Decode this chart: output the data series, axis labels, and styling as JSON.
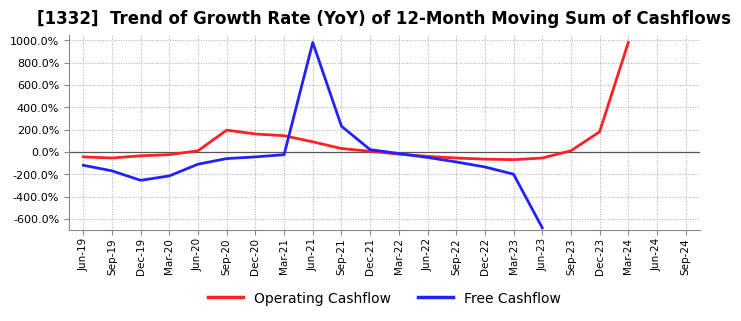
{
  "title": "[1332]  Trend of Growth Rate (YoY) of 12-Month Moving Sum of Cashflows",
  "title_fontsize": 12,
  "ylim": [
    -700,
    1050
  ],
  "yticks": [
    -600,
    -400,
    -200,
    0,
    200,
    400,
    600,
    800,
    1000
  ],
  "background_color": "#ffffff",
  "plot_bg_color": "#ffffff",
  "grid_color": "#aaaaaa",
  "operating_color": "#ff2222",
  "free_color": "#2222ff",
  "legend_labels": [
    "Operating Cashflow",
    "Free Cashflow"
  ],
  "x_labels": [
    "Jun-19",
    "Sep-19",
    "Dec-19",
    "Mar-20",
    "Jun-20",
    "Sep-20",
    "Dec-20",
    "Mar-21",
    "Jun-21",
    "Sep-21",
    "Dec-21",
    "Mar-22",
    "Jun-22",
    "Sep-22",
    "Dec-22",
    "Mar-23",
    "Jun-23",
    "Sep-23",
    "Dec-23",
    "Mar-24",
    "Jun-24",
    "Sep-24"
  ],
  "operating": [
    -45,
    -55,
    -35,
    -25,
    10,
    195,
    160,
    145,
    90,
    30,
    5,
    -20,
    -40,
    -55,
    -65,
    -70,
    -55,
    10,
    180,
    980,
    null,
    null
  ],
  "free": [
    -120,
    -170,
    -255,
    -215,
    -110,
    -60,
    -45,
    -25,
    980,
    230,
    20,
    -15,
    -50,
    -90,
    -135,
    -200,
    -680,
    null,
    null,
    null,
    null,
    null
  ]
}
